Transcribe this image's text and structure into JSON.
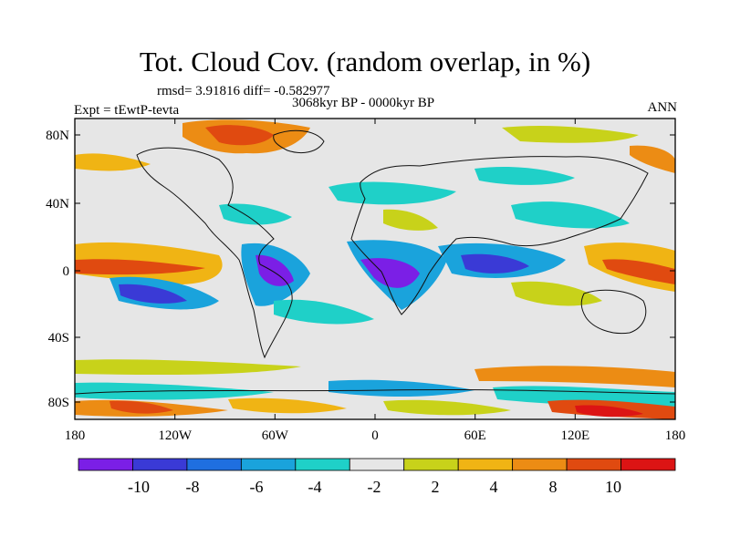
{
  "title": "Tot. Cloud Cov. (random overlap, in %)",
  "stats": "rmsd= 3.91816 diff= -0.582977",
  "period": "3068kyr BP - 0000kyr BP",
  "experiment": "Expt = tEwtP-tevta",
  "season": "ANN",
  "lat_labels": [
    "80N",
    "40N",
    "0",
    "40S",
    "80S"
  ],
  "lon_labels": [
    "180",
    "120W",
    "60W",
    "0",
    "60E",
    "120E",
    "180"
  ],
  "colorbar": {
    "colors": [
      "#7b1fe6",
      "#3a3ad6",
      "#1f6fe0",
      "#1aa3dc",
      "#1fd0c8",
      "#e6e6e6",
      "#c8d21a",
      "#f0b414",
      "#ec8c14",
      "#e04a10",
      "#dc1414"
    ],
    "labels": [
      "-10",
      "-8",
      "-6",
      "-4",
      "-2",
      "2",
      "4",
      "8",
      "10"
    ]
  }
}
